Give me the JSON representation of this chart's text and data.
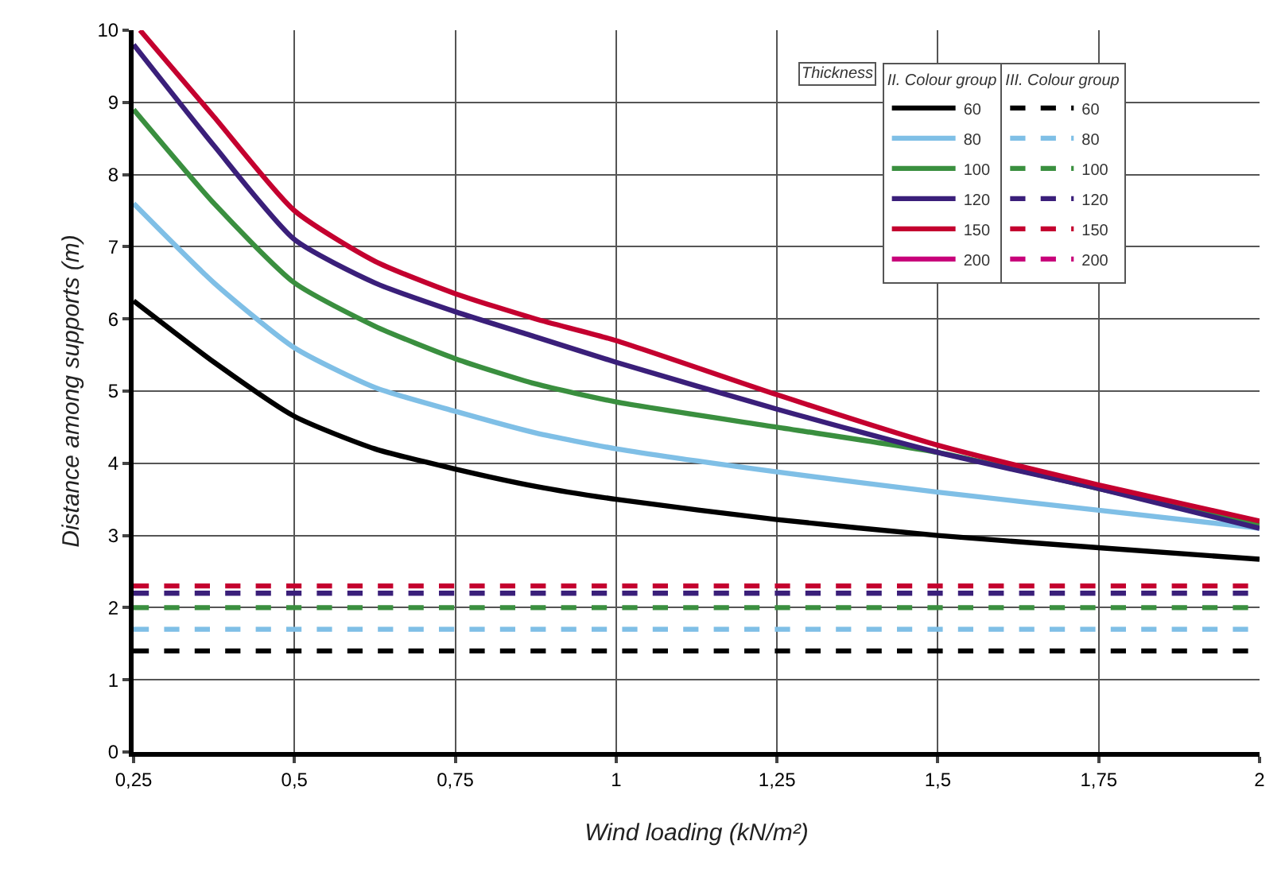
{
  "chart_data": {
    "type": "line",
    "xlabel": "Wind loading (kN/m²)",
    "ylabel": "Distance among supports (m)",
    "legend_title": "Thickness",
    "annotations": [
      "II. Colour group",
      "III. Colour group"
    ],
    "x": [
      0.25,
      0.375,
      0.5,
      0.625,
      0.75,
      0.875,
      1,
      1.25,
      1.5,
      1.75,
      2
    ],
    "series": [
      {
        "name": "60",
        "color": "#000000",
        "line_style": "solid",
        "values": [
          6.25,
          5.4,
          4.65,
          4.2,
          3.92,
          3.68,
          3.5,
          3.22,
          3.0,
          2.83,
          2.67
        ]
      },
      {
        "name": "80",
        "color": "#7fbfe6",
        "line_style": "solid",
        "values": [
          7.6,
          6.5,
          5.6,
          5.05,
          4.72,
          4.42,
          4.2,
          3.88,
          3.6,
          3.35,
          3.1
        ]
      },
      {
        "name": "100",
        "color": "#3a8f3f",
        "line_style": "solid",
        "values": [
          8.9,
          7.6,
          6.5,
          5.9,
          5.45,
          5.1,
          4.85,
          4.5,
          4.15,
          3.65,
          3.15
        ]
      },
      {
        "name": "120",
        "color": "#3a1f7a",
        "line_style": "solid",
        "values": [
          9.8,
          8.4,
          7.1,
          6.5,
          6.1,
          5.75,
          5.4,
          4.75,
          4.15,
          3.65,
          3.1
        ]
      },
      {
        "name": "150",
        "color": "#c4002f",
        "line_style": "solid",
        "x": [
          0.26,
          0.375,
          0.5,
          0.625,
          0.75,
          0.875,
          1,
          1.25,
          1.5,
          1.75,
          2
        ],
        "values": [
          10,
          8.8,
          7.5,
          6.8,
          6.35,
          6.0,
          5.7,
          4.95,
          4.25,
          3.7,
          3.2
        ]
      },
      {
        "name": "200",
        "color": "#c8007a",
        "line_style": "solid",
        "values": [
          null,
          null,
          null,
          null,
          null,
          null,
          null,
          null,
          null,
          null,
          null
        ]
      },
      {
        "name": "60",
        "color": "#000000",
        "line_style": "dashed",
        "x": [
          0.25,
          2
        ],
        "values": [
          1.4,
          1.4
        ]
      },
      {
        "name": "80",
        "color": "#7fbfe6",
        "line_style": "dashed",
        "x": [
          0.25,
          2
        ],
        "values": [
          1.7,
          1.7
        ]
      },
      {
        "name": "100",
        "color": "#3a8f3f",
        "line_style": "dashed",
        "x": [
          0.25,
          2
        ],
        "values": [
          2.0,
          2.0
        ]
      },
      {
        "name": "120",
        "color": "#3a1f7a",
        "line_style": "dashed",
        "x": [
          0.25,
          2
        ],
        "values": [
          2.2,
          2.2
        ]
      },
      {
        "name": "150",
        "color": "#c4002f",
        "line_style": "dashed",
        "x": [
          0.25,
          2
        ],
        "values": [
          2.3,
          2.3
        ]
      },
      {
        "name": "200",
        "color": "#c8007a",
        "line_style": "dashed",
        "values": [
          null,
          null,
          null,
          null,
          null,
          null,
          null,
          null,
          null,
          null,
          null
        ]
      }
    ],
    "xlim": [
      0.25,
      2
    ],
    "xticks": [
      {
        "value": 0.25,
        "label": "0,25"
      },
      {
        "value": 0.5,
        "label": "0,5"
      },
      {
        "value": 0.75,
        "label": "0,75"
      },
      1,
      {
        "value": 1.25,
        "label": "1,25"
      },
      {
        "value": 1.5,
        "label": "1,5"
      },
      {
        "value": 1.75,
        "label": "1,75"
      },
      2
    ],
    "ylim": [
      0,
      10
    ],
    "yticks": [
      0,
      1,
      2,
      3,
      4,
      5,
      6,
      7,
      8,
      9,
      10
    ],
    "grid": true,
    "legend": "top right",
    "marker": "none"
  }
}
